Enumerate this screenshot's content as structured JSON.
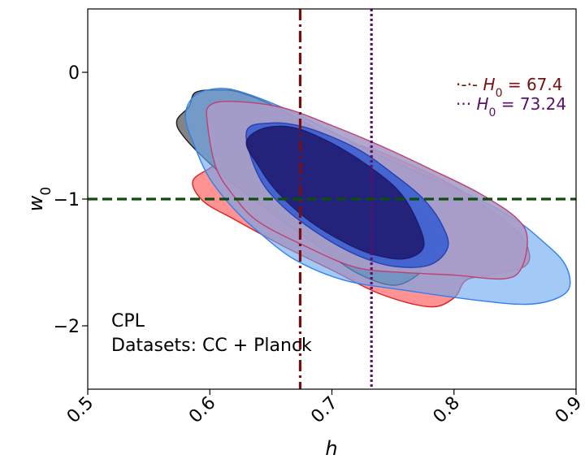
{
  "chart_data": {
    "type": "contour",
    "xlabel": "h",
    "ylabel": "w0",
    "xlim": [
      0.5,
      0.9
    ],
    "ylim": [
      -2.5,
      0.5
    ],
    "xticks": [
      "0.5",
      "0.6",
      "0.7",
      "0.8",
      "0.9"
    ],
    "yticks": [
      "0",
      "−1",
      "−2"
    ],
    "xtick_values": [
      0.5,
      0.6,
      0.7,
      0.8,
      0.9
    ],
    "ytick_values": [
      0,
      -1,
      -2
    ],
    "grid": false,
    "annotations": [
      "CPL",
      "Datasets: CC + Planck"
    ],
    "legend": {
      "placement": "top-right",
      "entries": [
        {
          "label_prefix": "H",
          "subscript": "0",
          "label_suffix": " = 67.4",
          "line_glyph": "·-·-",
          "color": "#7a0f0f"
        },
        {
          "label_prefix": "H",
          "subscript": "0",
          "label_suffix": " = 73.24",
          "line_glyph": "···",
          "color": "#5a0f6a"
        }
      ]
    },
    "reference_lines": [
      {
        "orientation": "vertical",
        "value": 0.674,
        "style": "dashdot",
        "color": "#7a0f0f"
      },
      {
        "orientation": "vertical",
        "value": 0.7324,
        "style": "dotted",
        "color": "#5a0f6a"
      },
      {
        "orientation": "horizontal",
        "value": -1,
        "style": "dashed",
        "color": "#0b4f0b"
      }
    ],
    "contours": [
      {
        "level": "outer",
        "fill": "#ff4a4a",
        "stroke": "#e02020",
        "opacity": 0.6,
        "points": [
          [
            0.601,
            -0.75
          ],
          [
            0.615,
            -0.66
          ],
          [
            0.64,
            -0.58
          ],
          [
            0.68,
            -0.53
          ],
          [
            0.72,
            -0.57
          ],
          [
            0.76,
            -0.71
          ],
          [
            0.8,
            -0.9
          ],
          [
            0.83,
            -1.09
          ],
          [
            0.85,
            -1.24
          ],
          [
            0.861,
            -1.4
          ],
          [
            0.858,
            -1.53
          ],
          [
            0.83,
            -1.6
          ],
          [
            0.81,
            -1.64
          ],
          [
            0.8,
            -1.78
          ],
          [
            0.78,
            -1.85
          ],
          [
            0.74,
            -1.75
          ],
          [
            0.7,
            -1.56
          ],
          [
            0.66,
            -1.37
          ],
          [
            0.62,
            -1.16
          ],
          [
            0.595,
            -1.02
          ],
          [
            0.586,
            -0.86
          ]
        ]
      },
      {
        "level": "outer",
        "fill": "#6f6f6f",
        "stroke": "#1a1a1a",
        "opacity": 0.85,
        "points": [
          [
            0.573,
            -0.38
          ],
          [
            0.583,
            -0.27
          ],
          [
            0.588,
            -0.16
          ],
          [
            0.605,
            -0.14
          ],
          [
            0.625,
            -0.16
          ],
          [
            0.66,
            -0.3
          ],
          [
            0.7,
            -0.53
          ],
          [
            0.74,
            -0.82
          ],
          [
            0.77,
            -1.08
          ],
          [
            0.785,
            -1.31
          ],
          [
            0.782,
            -1.44
          ],
          [
            0.775,
            -1.5
          ],
          [
            0.77,
            -1.6
          ],
          [
            0.75,
            -1.68
          ],
          [
            0.72,
            -1.58
          ],
          [
            0.69,
            -1.38
          ],
          [
            0.66,
            -1.17
          ],
          [
            0.63,
            -0.96
          ],
          [
            0.6,
            -0.72
          ],
          [
            0.578,
            -0.5
          ]
        ]
      },
      {
        "level": "outer",
        "fill": "#6aa8f0",
        "stroke": "#2f7ff0",
        "opacity": 0.62,
        "points": [
          [
            0.585,
            -0.21
          ],
          [
            0.598,
            -0.14
          ],
          [
            0.62,
            -0.14
          ],
          [
            0.66,
            -0.28
          ],
          [
            0.7,
            -0.47
          ],
          [
            0.74,
            -0.66
          ],
          [
            0.78,
            -0.83
          ],
          [
            0.82,
            -1.0
          ],
          [
            0.85,
            -1.16
          ],
          [
            0.87,
            -1.31
          ],
          [
            0.89,
            -1.5
          ],
          [
            0.895,
            -1.68
          ],
          [
            0.885,
            -1.78
          ],
          [
            0.86,
            -1.83
          ],
          [
            0.82,
            -1.8
          ],
          [
            0.76,
            -1.72
          ],
          [
            0.71,
            -1.64
          ],
          [
            0.67,
            -1.48
          ],
          [
            0.64,
            -1.26
          ],
          [
            0.62,
            -1.08
          ],
          [
            0.6,
            -0.84
          ],
          [
            0.587,
            -0.57
          ],
          [
            0.58,
            -0.36
          ]
        ]
      },
      {
        "level": "outer",
        "fill": "#a89cc8",
        "stroke": "#c04070",
        "opacity": 0.9,
        "points": [
          [
            0.598,
            -0.4
          ],
          [
            0.6,
            -0.26
          ],
          [
            0.62,
            -0.23
          ],
          [
            0.66,
            -0.28
          ],
          [
            0.7,
            -0.42
          ],
          [
            0.74,
            -0.58
          ],
          [
            0.78,
            -0.76
          ],
          [
            0.82,
            -0.95
          ],
          [
            0.85,
            -1.14
          ],
          [
            0.86,
            -1.3
          ],
          [
            0.855,
            -1.55
          ],
          [
            0.84,
            -1.63
          ],
          [
            0.8,
            -1.6
          ],
          [
            0.76,
            -1.58
          ],
          [
            0.72,
            -1.54
          ],
          [
            0.68,
            -1.38
          ],
          [
            0.64,
            -1.18
          ],
          [
            0.62,
            -0.98
          ],
          [
            0.605,
            -0.75
          ]
        ]
      },
      {
        "level": "inner",
        "fill": "#3a5fd0",
        "stroke": "#2a3fb0",
        "opacity": 0.9,
        "points": [
          [
            0.63,
            -0.47
          ],
          [
            0.65,
            -0.4
          ],
          [
            0.68,
            -0.44
          ],
          [
            0.72,
            -0.6
          ],
          [
            0.75,
            -0.8
          ],
          [
            0.775,
            -1.0
          ],
          [
            0.79,
            -1.2
          ],
          [
            0.795,
            -1.38
          ],
          [
            0.78,
            -1.52
          ],
          [
            0.75,
            -1.53
          ],
          [
            0.72,
            -1.44
          ],
          [
            0.69,
            -1.28
          ],
          [
            0.66,
            -1.06
          ],
          [
            0.64,
            -0.82
          ]
        ]
      },
      {
        "level": "inner",
        "fill": "#1f1a6e",
        "stroke": "#1f1a6e",
        "opacity": 0.88,
        "points": [
          [
            0.63,
            -0.55
          ],
          [
            0.645,
            -0.44
          ],
          [
            0.67,
            -0.44
          ],
          [
            0.7,
            -0.56
          ],
          [
            0.73,
            -0.74
          ],
          [
            0.755,
            -0.94
          ],
          [
            0.77,
            -1.18
          ],
          [
            0.775,
            -1.38
          ],
          [
            0.76,
            -1.47
          ],
          [
            0.735,
            -1.44
          ],
          [
            0.71,
            -1.34
          ],
          [
            0.68,
            -1.16
          ],
          [
            0.655,
            -0.94
          ],
          [
            0.64,
            -0.74
          ]
        ]
      }
    ]
  }
}
